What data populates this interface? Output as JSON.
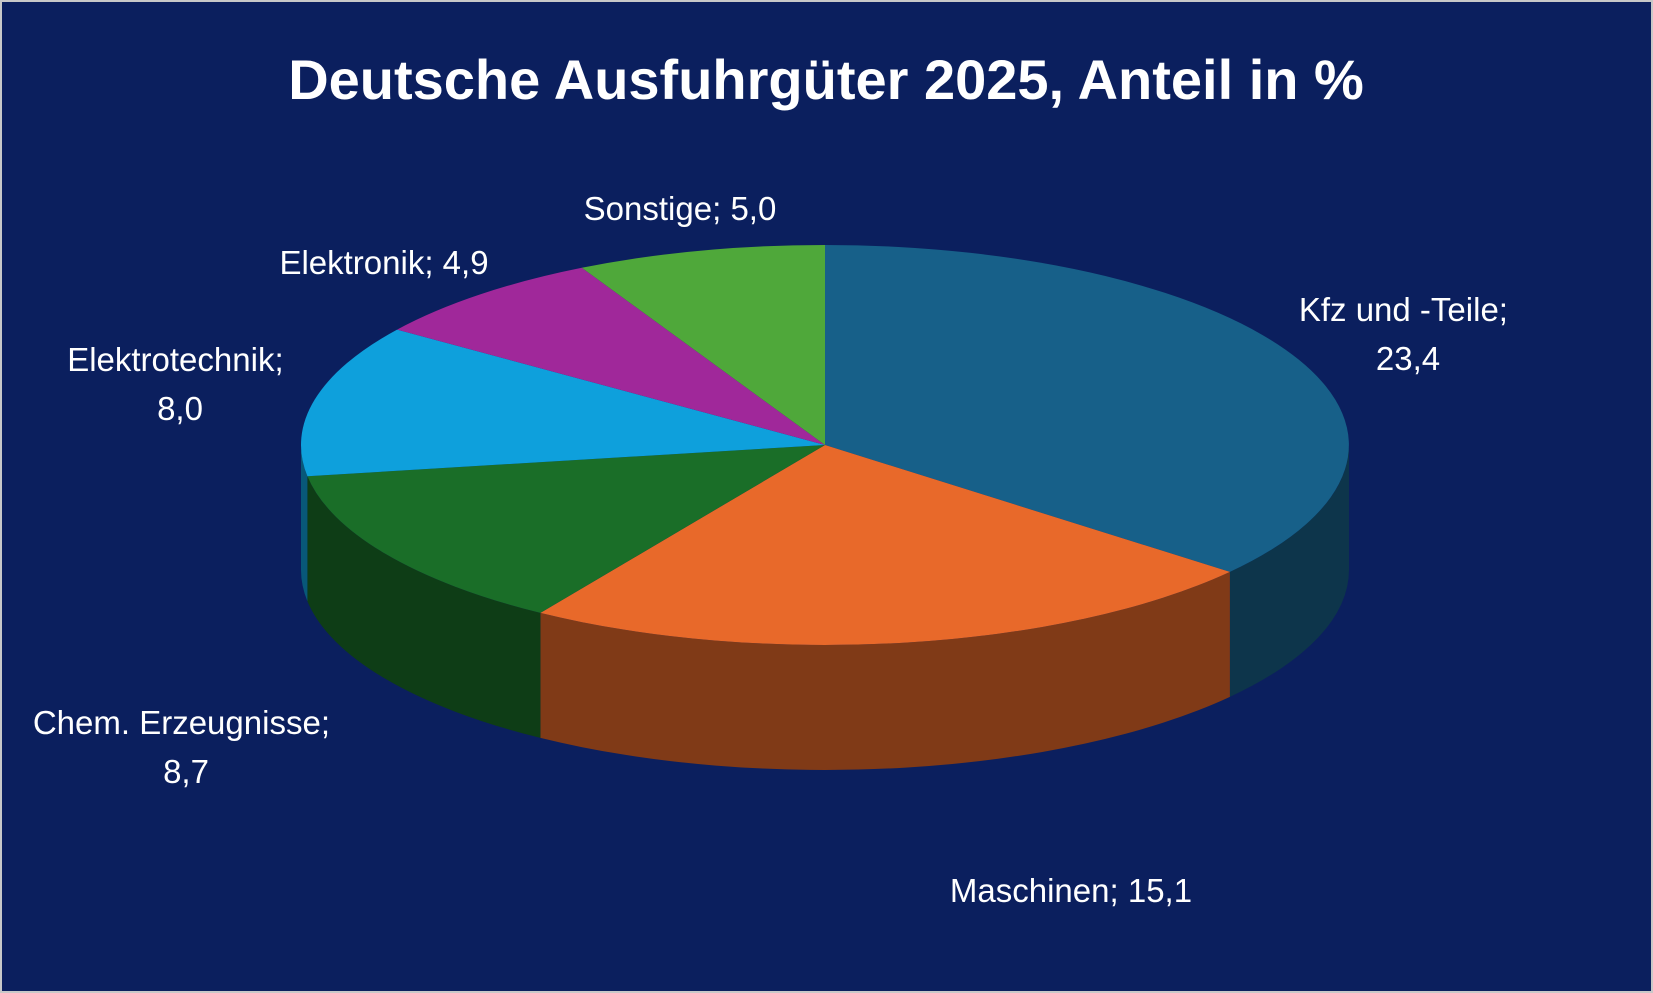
{
  "chart_data": {
    "type": "pie",
    "title": "Deutsche Ausfuhrgüter 2025, Anteil in %",
    "categories": [
      "Kfz und -Teile",
      "Maschinen",
      "Chem. Erzeugnisse",
      "Elektrotechnik",
      "Elektronik",
      "Sonstige"
    ],
    "values": [
      23.4,
      15.1,
      8.7,
      8.0,
      4.9,
      5.0
    ],
    "value_labels": [
      "23,4",
      "15,1",
      "8,7",
      "8,0",
      "4,9",
      "5,0"
    ],
    "label_separator": "; ",
    "colors": [
      "#176089",
      "#e8692a",
      "#1a6e28",
      "#0ea0dc",
      "#a0289a",
      "#4fa83a"
    ]
  }
}
